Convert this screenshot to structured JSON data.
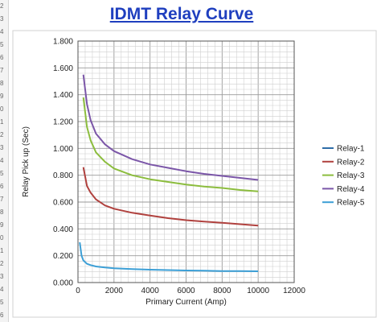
{
  "gutter_rows": [
    "2",
    "3",
    "4",
    "5",
    "6",
    "7",
    "8",
    "9",
    "0",
    "1",
    "2",
    "3",
    "4",
    "5",
    "6",
    "7",
    "8",
    "9",
    "0",
    "1",
    "2",
    "3",
    "4",
    "5",
    "6"
  ],
  "chart_data": {
    "type": "line",
    "title": "IDMT Relay Curve",
    "xlabel": "Primary Current (Amp)",
    "ylabel": "Relay Pick up (Sec)",
    "xlim": [
      0,
      12000
    ],
    "ylim": [
      0,
      1.8
    ],
    "xticks": [
      0,
      2000,
      4000,
      6000,
      8000,
      10000,
      12000
    ],
    "xtick_labels": [
      "0",
      "2000",
      "4000",
      "6000",
      "8000",
      "10000",
      "12000"
    ],
    "yticks": [
      0,
      0.2,
      0.4,
      0.6,
      0.8,
      1.0,
      1.2,
      1.4,
      1.6,
      1.8
    ],
    "ytick_labels": [
      "0.000",
      "0.200",
      "0.400",
      "0.600",
      "0.800",
      "1.000",
      "1.200",
      "1.400",
      "1.600",
      "1.800"
    ],
    "grid": true,
    "legend_position": "right",
    "series": [
      {
        "name": "Relay-1",
        "color": "#2e6da8",
        "x": [],
        "y": []
      },
      {
        "name": "Relay-2",
        "color": "#b0413e",
        "x": [
          300,
          500,
          700,
          1000,
          1500,
          2000,
          3000,
          4000,
          5000,
          6000,
          7000,
          8000,
          9000,
          10000
        ],
        "y": [
          0.86,
          0.72,
          0.67,
          0.62,
          0.575,
          0.55,
          0.52,
          0.5,
          0.48,
          0.465,
          0.455,
          0.445,
          0.435,
          0.425
        ]
      },
      {
        "name": "Relay-3",
        "color": "#8cbd3e",
        "x": [
          300,
          500,
          700,
          1000,
          1500,
          2000,
          3000,
          4000,
          5000,
          6000,
          7000,
          8000,
          9000,
          10000
        ],
        "y": [
          1.38,
          1.16,
          1.06,
          0.97,
          0.9,
          0.85,
          0.8,
          0.77,
          0.75,
          0.73,
          0.715,
          0.705,
          0.69,
          0.68
        ]
      },
      {
        "name": "Relay-4",
        "color": "#7b56a8",
        "x": [
          300,
          500,
          700,
          1000,
          1500,
          2000,
          3000,
          4000,
          5000,
          6000,
          7000,
          8000,
          9000,
          10000
        ],
        "y": [
          1.55,
          1.33,
          1.21,
          1.11,
          1.03,
          0.98,
          0.92,
          0.88,
          0.855,
          0.83,
          0.81,
          0.795,
          0.78,
          0.765
        ]
      },
      {
        "name": "Relay-5",
        "color": "#3c9fd6",
        "x": [
          100,
          200,
          300,
          500,
          700,
          1000,
          1500,
          2000,
          3000,
          4000,
          5000,
          6000,
          7000,
          8000,
          9000,
          10000
        ],
        "y": [
          0.3,
          0.2,
          0.165,
          0.14,
          0.13,
          0.12,
          0.112,
          0.107,
          0.1,
          0.096,
          0.093,
          0.09,
          0.088,
          0.086,
          0.085,
          0.084
        ]
      }
    ]
  }
}
